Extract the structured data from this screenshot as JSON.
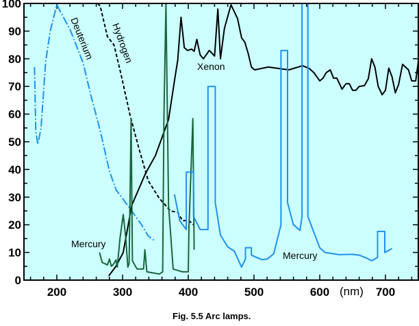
{
  "chart_data": {
    "type": "line",
    "title": "",
    "xlabel": "(nm)",
    "ylabel": "",
    "xlim": [
      150,
      750
    ],
    "ylim": [
      0,
      100
    ],
    "x_ticks": [
      200,
      300,
      400,
      500,
      600,
      700
    ],
    "y_ticks": [
      0,
      10,
      20,
      30,
      40,
      50,
      60,
      70,
      80,
      90,
      100
    ],
    "grid": false,
    "background": "#ccffff",
    "caption": "Fig. 5.5  Arc lamps.",
    "series": [
      {
        "name": "Deuterium",
        "color": "#1e90f0",
        "style": "dashdot",
        "points": [
          [
            166,
            77
          ],
          [
            168,
            54
          ],
          [
            171,
            49
          ],
          [
            176,
            55
          ],
          [
            183,
            79
          ],
          [
            190,
            90
          ],
          [
            200,
            99.5
          ],
          [
            209,
            95.5
          ],
          [
            220,
            90.6
          ],
          [
            231,
            84
          ],
          [
            240,
            78.5
          ],
          [
            252,
            66.6
          ],
          [
            266,
            54
          ],
          [
            280,
            39.4
          ],
          [
            290,
            32.7
          ],
          [
            311,
            26
          ],
          [
            329,
            20
          ],
          [
            339,
            16
          ],
          [
            350,
            14
          ]
        ]
      },
      {
        "name": "Hydrogen",
        "color": "#000000",
        "style": "dashed",
        "points": [
          [
            262,
            100
          ],
          [
            266,
            99
          ],
          [
            277,
            88
          ],
          [
            287,
            85
          ],
          [
            298,
            74
          ],
          [
            311,
            60
          ],
          [
            325,
            47.5
          ],
          [
            339,
            36
          ],
          [
            356,
            29.5
          ],
          [
            373,
            25
          ],
          [
            384,
            24.5
          ],
          [
            391,
            21.5
          ],
          [
            401,
            21.5
          ],
          [
            408,
            20
          ]
        ]
      },
      {
        "name": "Xenon",
        "color": "#000000",
        "style": "solid",
        "points": [
          [
            279,
            1.5
          ],
          [
            290,
            5
          ],
          [
            301,
            10
          ],
          [
            314,
            27
          ],
          [
            335,
            38.6
          ],
          [
            350,
            45
          ],
          [
            363,
            53.5
          ],
          [
            370,
            58
          ],
          [
            379,
            72
          ],
          [
            384,
            79.5
          ],
          [
            389,
            95
          ],
          [
            394,
            84
          ],
          [
            399,
            83
          ],
          [
            405,
            83.5
          ],
          [
            409,
            82.7
          ],
          [
            413,
            87
          ],
          [
            418,
            81.4
          ],
          [
            423,
            80
          ],
          [
            432,
            83
          ],
          [
            440,
            81
          ],
          [
            445,
            98
          ],
          [
            449,
            80
          ],
          [
            455,
            91
          ],
          [
            465,
            99.5
          ],
          [
            475,
            94.5
          ],
          [
            481,
            87.6
          ],
          [
            486,
            86
          ],
          [
            491,
            82
          ],
          [
            496,
            77
          ],
          [
            501,
            76
          ],
          [
            522,
            77
          ],
          [
            553,
            76
          ],
          [
            574,
            77.5
          ],
          [
            584,
            76.5
          ],
          [
            591,
            75
          ],
          [
            600,
            72
          ],
          [
            605,
            73
          ],
          [
            610,
            75
          ],
          [
            616,
            76
          ],
          [
            621,
            73
          ],
          [
            626,
            73
          ],
          [
            634,
            69
          ],
          [
            640,
            71
          ],
          [
            645,
            71
          ],
          [
            650,
            68.6
          ],
          [
            655,
            68.6
          ],
          [
            660,
            70
          ],
          [
            668,
            70.3
          ],
          [
            674,
            72.8
          ],
          [
            679,
            80
          ],
          [
            684,
            77
          ],
          [
            689,
            70
          ],
          [
            695,
            67
          ],
          [
            700,
            68.6
          ],
          [
            705,
            76.6
          ],
          [
            710,
            73.5
          ],
          [
            715,
            67.7
          ],
          [
            720,
            70.7
          ],
          [
            726,
            78
          ],
          [
            735,
            76
          ],
          [
            740,
            72
          ],
          [
            746,
            72
          ],
          [
            750,
            79
          ]
        ]
      },
      {
        "name": "Mercury",
        "color": "#17663a",
        "style": "solid",
        "points": [
          [
            265,
            10
          ],
          [
            269,
            6.4
          ],
          [
            277,
            5.5
          ],
          [
            280,
            7.6
          ],
          [
            283,
            5
          ],
          [
            287,
            6
          ],
          [
            290,
            7.3
          ],
          [
            292,
            4.7
          ],
          [
            296,
            15
          ],
          [
            301,
            23.7
          ],
          [
            305,
            15
          ],
          [
            308,
            4.7
          ],
          [
            310,
            6
          ],
          [
            313,
            58.4
          ],
          [
            315,
            7
          ],
          [
            322,
            4
          ],
          [
            332,
            4
          ],
          [
            334,
            11
          ],
          [
            337,
            3
          ],
          [
            356,
            2.2
          ],
          [
            361,
            3
          ],
          [
            363,
            60
          ],
          [
            366,
            100
          ],
          [
            370,
            27
          ],
          [
            377,
            4
          ],
          [
            391,
            3
          ],
          [
            400,
            3
          ],
          [
            401,
            19
          ],
          [
            407,
            58.4
          ],
          [
            409,
            11
          ]
        ]
      },
      {
        "name": "Mercury",
        "color": "#1e90f0",
        "style": "solid",
        "points": [
          [
            379,
            31
          ],
          [
            387,
            21.5
          ],
          [
            397,
            18.3
          ],
          [
            397,
            39
          ],
          [
            408,
            39
          ],
          [
            408,
            23
          ],
          [
            418,
            18.3
          ],
          [
            430,
            18.3
          ],
          [
            430,
            70
          ],
          [
            441,
            70
          ],
          [
            441,
            28
          ],
          [
            449,
            16.3
          ],
          [
            460,
            12
          ],
          [
            470,
            10.5
          ],
          [
            481,
            4.7
          ],
          [
            487,
            7.6
          ],
          [
            487,
            11.7
          ],
          [
            496,
            11.7
          ],
          [
            496,
            9
          ],
          [
            512,
            7.4
          ],
          [
            520,
            7.6
          ],
          [
            530,
            9.5
          ],
          [
            541,
            20
          ],
          [
            541,
            83
          ],
          [
            551,
            83
          ],
          [
            551,
            28
          ],
          [
            560,
            20
          ],
          [
            570,
            18
          ],
          [
            573,
            23
          ],
          [
            573,
            100
          ],
          [
            582,
            100
          ],
          [
            582,
            23
          ],
          [
            600,
            11.7
          ],
          [
            608,
            10
          ],
          [
            629,
            9.2
          ],
          [
            650,
            9.3
          ],
          [
            660,
            9
          ],
          [
            671,
            8
          ],
          [
            679,
            7
          ],
          [
            688,
            8.2
          ],
          [
            688,
            17.6
          ],
          [
            699,
            17.6
          ],
          [
            699,
            10
          ],
          [
            710,
            11.4
          ]
        ]
      }
    ],
    "annotations": [
      {
        "text": "Deuterium",
        "series": "Deuterium"
      },
      {
        "text": "Hydrogen",
        "series": "Hydrogen"
      },
      {
        "text": "Xenon",
        "series": "Xenon"
      },
      {
        "text": "Mercury",
        "series": "Mercury (green)"
      },
      {
        "text": "Mercury",
        "series": "Mercury (blue)"
      }
    ]
  }
}
